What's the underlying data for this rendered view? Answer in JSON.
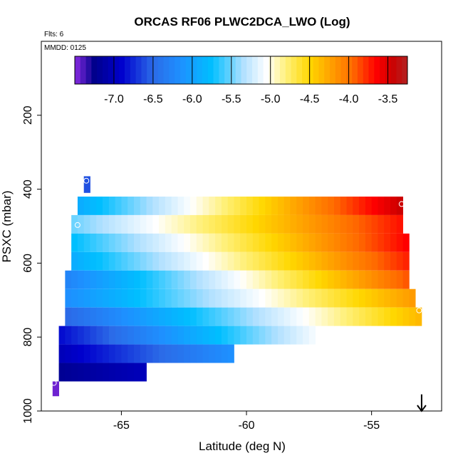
{
  "chart_data": {
    "type": "heatmap",
    "title": "ORCAS RF06 PLWC2DCA_LWO (Log)",
    "annotations": [
      "Flts: 6",
      "MMDD: 0125"
    ],
    "xlabel": "Latitude (deg N)",
    "ylabel": "PSXC (mbar)",
    "xlim": [
      -68.2,
      -52.2
    ],
    "ylim": [
      1000,
      0
    ],
    "y_reversed": true,
    "x_ticks": [
      -65,
      -60,
      -55
    ],
    "y_ticks": [
      200,
      400,
      600,
      800,
      1000
    ],
    "colorbar": {
      "range": [
        -7.5,
        -3.25
      ],
      "ticks": [
        -7.0,
        -6.5,
        -6.0,
        -5.5,
        -5.0,
        -4.5,
        -4.0,
        -3.5
      ],
      "tick_labels": [
        "-7.0",
        "-6.5",
        "-6.0",
        "-5.5",
        "-5.0",
        "-4.5",
        "-4.0",
        "-3.5"
      ],
      "stops": [
        {
          "v": -7.5,
          "c": "#8a2be2"
        },
        {
          "v": -7.25,
          "c": "#00008b"
        },
        {
          "v": -6.9,
          "c": "#0000cd"
        },
        {
          "v": -6.5,
          "c": "#2b6be8"
        },
        {
          "v": -6.15,
          "c": "#1e90ff"
        },
        {
          "v": -5.75,
          "c": "#00bfff"
        },
        {
          "v": -5.35,
          "c": "#b0e0ff"
        },
        {
          "v": -5.05,
          "c": "#ffffff"
        },
        {
          "v": -4.8,
          "c": "#fff07a"
        },
        {
          "v": -4.5,
          "c": "#ffd700"
        },
        {
          "v": -4.25,
          "c": "#ffa500"
        },
        {
          "v": -3.95,
          "c": "#ff6a00"
        },
        {
          "v": -3.65,
          "c": "#ff0000"
        },
        {
          "v": -3.45,
          "c": "#cc0000"
        },
        {
          "v": -3.25,
          "c": "#b22222"
        }
      ]
    },
    "cell_width_deg": 0.25,
    "rows": [
      {
        "p_top": 365,
        "p_bot": 410,
        "x_start": -66.5,
        "x_end": -66.25,
        "v_start": -6.6,
        "v_end": -6.6
      },
      {
        "p_top": 420,
        "p_bot": 470,
        "x_start": -66.75,
        "x_end": -53.75,
        "v_start": -5.9,
        "v_end": -3.45
      },
      {
        "p_top": 470,
        "p_bot": 520,
        "x_start": -67.0,
        "x_end": -53.75,
        "v_start": -5.5,
        "v_end": -3.7
      },
      {
        "p_top": 520,
        "p_bot": 570,
        "x_start": -67.0,
        "x_end": -53.5,
        "v_start": -5.75,
        "v_end": -3.65
      },
      {
        "p_top": 570,
        "p_bot": 620,
        "x_start": -67.0,
        "x_end": -53.5,
        "v_start": -5.9,
        "v_end": -3.75
      },
      {
        "p_top": 620,
        "p_bot": 670,
        "x_start": -67.25,
        "x_end": -53.5,
        "v_start": -6.25,
        "v_end": -3.9
      },
      {
        "p_top": 670,
        "p_bot": 720,
        "x_start": -67.25,
        "x_end": -53.25,
        "v_start": -6.15,
        "v_end": -4.2
      },
      {
        "p_top": 720,
        "p_bot": 770,
        "x_start": -67.25,
        "x_end": -53.0,
        "v_start": -6.5,
        "v_end": -4.35
      },
      {
        "p_top": 770,
        "p_bot": 820,
        "x_start": -67.5,
        "x_end": -57.25,
        "v_start": -6.85,
        "v_end": -5.1
      },
      {
        "p_top": 820,
        "p_bot": 870,
        "x_start": -67.5,
        "x_end": -60.5,
        "v_start": -7.0,
        "v_end": -6.15
      },
      {
        "p_top": 870,
        "p_bot": 920,
        "x_start": -67.5,
        "x_end": -64.0,
        "v_start": -7.2,
        "v_end": -7.0
      },
      {
        "p_top": 920,
        "p_bot": 960,
        "x_start": -67.75,
        "x_end": -67.5,
        "v_start": -7.45,
        "v_end": -7.45
      }
    ],
    "markers": [
      {
        "x": -66.4,
        "y": 377
      },
      {
        "x": -66.75,
        "y": 497
      },
      {
        "x": -53.8,
        "y": 440
      },
      {
        "x": -53.1,
        "y": 728
      },
      {
        "x": -67.7,
        "y": 924
      }
    ],
    "arrow": {
      "x": -53.0,
      "y_from": 955,
      "y_to": 1000
    }
  }
}
